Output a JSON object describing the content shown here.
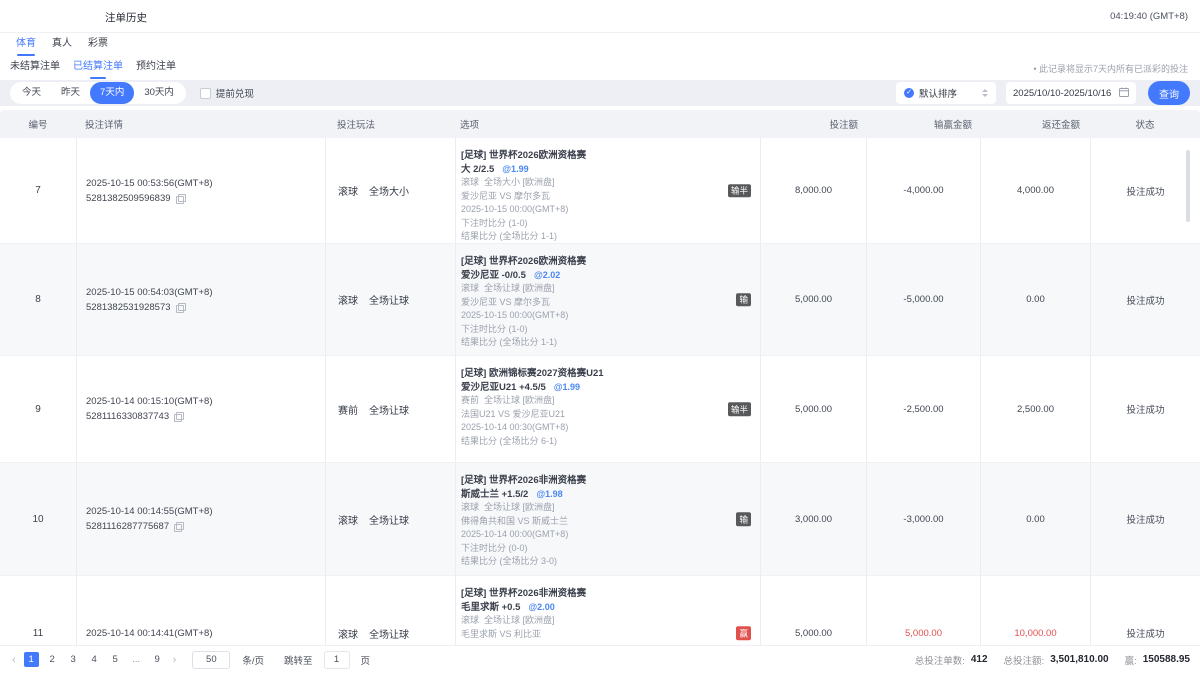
{
  "header": {
    "title": "注单历史",
    "time": "04:19:40 (GMT+8)"
  },
  "tabs": [
    {
      "label": "体育",
      "active": true
    },
    {
      "label": "真人",
      "active": false
    },
    {
      "label": "彩票",
      "active": false
    }
  ],
  "subtabs": [
    {
      "label": "未结算注单",
      "active": false
    },
    {
      "label": "已结算注单",
      "active": true
    },
    {
      "label": "预约注单",
      "active": false
    }
  ],
  "note": "• 此记录将显示7天内所有已派彩的投注",
  "filters": {
    "quick_ranges": [
      {
        "label": "今天",
        "active": false
      },
      {
        "label": "昨天",
        "active": false
      },
      {
        "label": "7天内",
        "active": true
      },
      {
        "label": "30天内",
        "active": false
      }
    ],
    "early_cashout_label": "提前兑现",
    "early_cashout_checked": false,
    "sort_selected": "默认排序",
    "date_range": "2025/10/10-2025/10/16",
    "search_button": "查询"
  },
  "icons": {
    "sort_check": "✓",
    "prev_arrow": "‹",
    "next_arrow": "›"
  },
  "table": {
    "columns": [
      "编号",
      "投注详情",
      "投注玩法",
      "选项",
      "投注额",
      "输赢金额",
      "返还金额",
      "状态"
    ],
    "rows": [
      {
        "no": "7",
        "bet_time": "2025-10-15 00:53:56(GMT+8)",
        "bet_id": "5281382509596839",
        "play_phase": "滚球",
        "play_name": "全场大小",
        "league": "[足球] 世界杯2026欧洲资格赛",
        "pick": "大 2/2.5",
        "odds": "@1.99",
        "detail_lines": [
          "滚球  全场大小 [欧洲盘]",
          "爱沙尼亚 VS 摩尔多瓦",
          "2025-10-15 00:00(GMT+8)",
          "下注时比分 (1-0)",
          "结果比分 (全场比分 1-1)"
        ],
        "result_badge": "输半",
        "badge_color": "dark",
        "bet_amount": "8,000.00",
        "win_loss": "-4,000.00",
        "win_loss_color": "normal",
        "refund": "4,000.00",
        "refund_color": "normal",
        "status": "投注成功"
      },
      {
        "no": "8",
        "bet_time": "2025-10-15 00:54:03(GMT+8)",
        "bet_id": "5281382531928573",
        "play_phase": "滚球",
        "play_name": "全场让球",
        "league": "[足球] 世界杯2026欧洲资格赛",
        "pick": "爱沙尼亚 -0/0.5",
        "odds": "@2.02",
        "detail_lines": [
          "滚球  全场让球 [欧洲盘]",
          "爱沙尼亚 VS 摩尔多瓦",
          "2025-10-15 00:00(GMT+8)",
          "下注时比分 (1-0)",
          "结果比分 (全场比分 1-1)"
        ],
        "result_badge": "输",
        "badge_color": "dark",
        "bet_amount": "5,000.00",
        "win_loss": "-5,000.00",
        "win_loss_color": "normal",
        "refund": "0.00",
        "refund_color": "normal",
        "status": "投注成功"
      },
      {
        "no": "9",
        "bet_time": "2025-10-14 00:15:10(GMT+8)",
        "bet_id": "5281116330837743",
        "play_phase": "赛前",
        "play_name": "全场让球",
        "league": "[足球] 欧洲锦标赛2027资格赛U21",
        "pick": "爱沙尼亚U21 +4.5/5",
        "odds": "@1.99",
        "detail_lines": [
          "赛前  全场让球 [欧洲盘]",
          "法国U21 VS 爱沙尼亚U21",
          "2025-10-14 00:30(GMT+8)",
          "结果比分 (全场比分 6-1)"
        ],
        "result_badge": "输半",
        "badge_color": "dark",
        "bet_amount": "5,000.00",
        "win_loss": "-2,500.00",
        "win_loss_color": "normal",
        "refund": "2,500.00",
        "refund_color": "normal",
        "status": "投注成功"
      },
      {
        "no": "10",
        "bet_time": "2025-10-14 00:14:55(GMT+8)",
        "bet_id": "5281116287775687",
        "play_phase": "滚球",
        "play_name": "全场让球",
        "league": "[足球] 世界杯2026非洲资格赛",
        "pick": "斯威士兰 +1.5/2",
        "odds": "@1.98",
        "detail_lines": [
          "滚球  全场让球 [欧洲盘]",
          "佛得角共和国 VS 斯威士兰",
          "2025-10-14 00:00(GMT+8)",
          "下注时比分 (0-0)",
          "结果比分 (全场比分 3-0)"
        ],
        "result_badge": "输",
        "badge_color": "dark",
        "bet_amount": "3,000.00",
        "win_loss": "-3,000.00",
        "win_loss_color": "normal",
        "refund": "0.00",
        "refund_color": "normal",
        "status": "投注成功"
      },
      {
        "no": "11",
        "bet_time": "2025-10-14 00:14:41(GMT+8)",
        "bet_id": "",
        "play_phase": "滚球",
        "play_name": "全场让球",
        "league": "[足球] 世界杯2026非洲资格赛",
        "pick": "毛里求斯 +0.5",
        "odds": "@2.00",
        "detail_lines": [
          "滚球  全场让球 [欧洲盘]",
          "毛里求斯 VS 利比亚"
        ],
        "result_badge": "赢",
        "badge_color": "red",
        "bet_amount": "5,000.00",
        "win_loss": "5,000.00",
        "win_loss_color": "red",
        "refund": "10,000.00",
        "refund_color": "red",
        "status": "投注成功"
      }
    ]
  },
  "pagination": {
    "pages": [
      "1",
      "2",
      "3",
      "4",
      "5",
      "...",
      "9"
    ],
    "current": "1",
    "page_size": "50",
    "page_size_unit": "条/页",
    "jump_label": "跳转至",
    "jump_value": "1",
    "jump_unit": "页"
  },
  "summary": {
    "total_count_label": "总投注单数:",
    "total_count": "412",
    "total_amount_label": "总投注额:",
    "total_amount": "3,501,810.00",
    "win_label": "赢:",
    "win_value": "150588.95"
  },
  "colors": {
    "accent": "#4379fd",
    "red": "#e25050",
    "odds_blue": "#4a87f0",
    "badge_dark": "#58595b"
  }
}
